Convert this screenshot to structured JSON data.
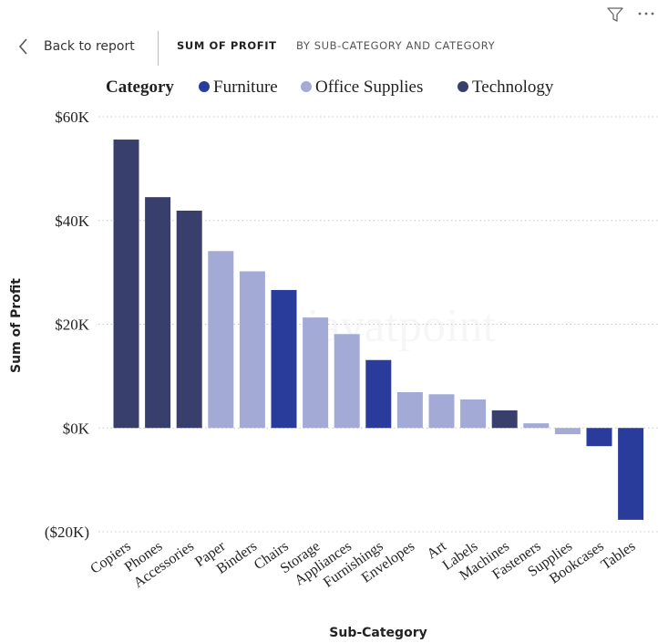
{
  "toolbar": {
    "filter_icon": "filter-icon",
    "more_icon": "more-options-icon"
  },
  "header": {
    "back_label": "Back to report",
    "title": "SUM OF PROFIT",
    "subtitle": "BY SUB-CATEGORY AND CATEGORY"
  },
  "chart_data": {
    "type": "bar",
    "legend": {
      "title": "Category",
      "position": "top-left",
      "items": [
        {
          "name": "Furniture",
          "color": "#2a3c9b"
        },
        {
          "name": "Office Supplies",
          "color": "#a3aad6"
        },
        {
          "name": "Technology",
          "color": "#393f6c"
        }
      ]
    },
    "xlabel": "Sub-Category",
    "ylabel": "Sum of Profit",
    "ylim": [
      -20000,
      60000
    ],
    "yticks": [
      {
        "value": 60000,
        "label": "$60K"
      },
      {
        "value": 40000,
        "label": "$40K"
      },
      {
        "value": 20000,
        "label": "$20K"
      },
      {
        "value": 0,
        "label": "$0K"
      },
      {
        "value": -20000,
        "label": "($20K)"
      }
    ],
    "grid": true,
    "categories": [
      "Copiers",
      "Phones",
      "Accessories",
      "Paper",
      "Binders",
      "Chairs",
      "Storage",
      "Appliances",
      "Furnishings",
      "Envelopes",
      "Art",
      "Labels",
      "Machines",
      "Fasteners",
      "Supplies",
      "Bookcases",
      "Tables"
    ],
    "bar_category": [
      "Technology",
      "Technology",
      "Technology",
      "Office Supplies",
      "Office Supplies",
      "Furniture",
      "Office Supplies",
      "Office Supplies",
      "Furniture",
      "Office Supplies",
      "Office Supplies",
      "Office Supplies",
      "Technology",
      "Office Supplies",
      "Office Supplies",
      "Furniture",
      "Furniture"
    ],
    "values": [
      55600,
      44500,
      41900,
      34100,
      30200,
      26600,
      21300,
      18100,
      13100,
      6900,
      6500,
      5500,
      3400,
      900,
      -1200,
      -3500,
      -17700
    ]
  },
  "watermark": "javatpoint"
}
